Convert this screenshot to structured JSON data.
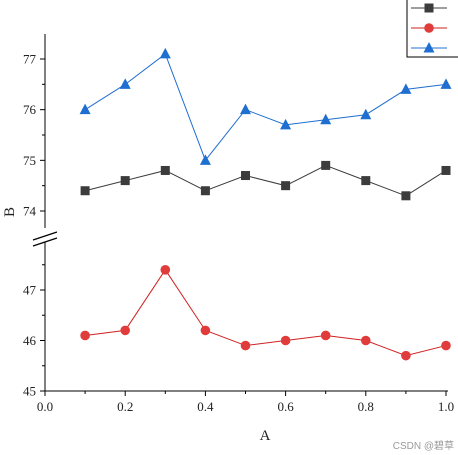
{
  "chart_data": {
    "type": "line",
    "xlabel": "A",
    "ylabel": "B",
    "xlim": [
      0.0,
      1.0
    ],
    "x_ticks": [
      "0.0",
      "0.2",
      "0.4",
      "0.6",
      "0.8",
      "1.0"
    ],
    "y_broken_axis": true,
    "y_lower_segment": {
      "range": [
        45,
        47.6
      ],
      "ticks": [
        45,
        46,
        47
      ]
    },
    "y_upper_segment": {
      "range": [
        73.6,
        77.5
      ],
      "ticks": [
        74,
        75,
        76,
        77
      ]
    },
    "x": [
      0.1,
      0.2,
      0.3,
      0.4,
      0.5,
      0.6,
      0.7,
      0.8,
      0.9,
      1.0
    ],
    "series": [
      {
        "marker": "square",
        "color": "#3c3c3c",
        "line_color": "#3c3c3c",
        "values": [
          74.4,
          74.6,
          74.8,
          74.4,
          74.7,
          74.5,
          74.9,
          74.6,
          74.3,
          74.8
        ]
      },
      {
        "marker": "circle",
        "color": "#e03c3c",
        "line_color": "#d02020",
        "values": [
          46.1,
          46.2,
          47.4,
          46.2,
          45.9,
          46.0,
          46.1,
          46.0,
          45.7,
          45.9
        ]
      },
      {
        "marker": "triangle",
        "color": "#1f6fd0",
        "line_color": "#1f6fd0",
        "values": [
          76.0,
          76.5,
          77.1,
          75.0,
          76.0,
          75.7,
          75.8,
          75.9,
          76.4,
          76.5
        ]
      }
    ],
    "legend": {
      "position": "top-right",
      "entries": 3
    },
    "grid": false
  },
  "watermark": "CSDN @碧草"
}
